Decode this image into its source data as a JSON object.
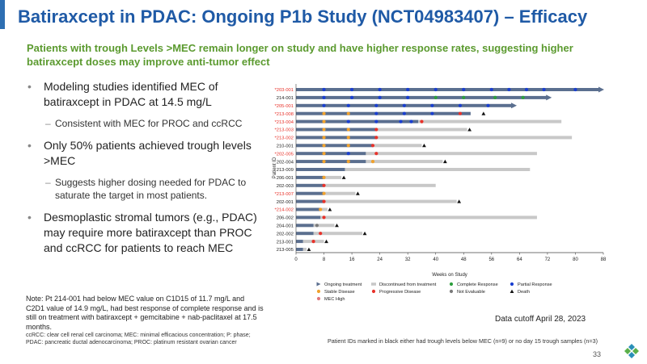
{
  "title": "Batiraxcept in PDAC: Ongoing P1b Study (NCT04983407) – Efficacy",
  "subtitle": "Patients with trough Levels >MEC remain longer on study and have higher response rates, suggesting higher batiraxcept doses may improve anti-tumor effect",
  "bullets": {
    "b1": "Modeling studies identified MEC of batiraxcept in PDAC at 14.5 mg/L",
    "b1_sub": "Consistent with MEC for PROC and ccRCC",
    "b2": "Only 50% patients achieved trough levels >MEC",
    "b2_sub": "Suggests higher dosing needed for PDAC to saturate the target in most patients.",
    "b3": "Desmoplastic stromal tumors (e.g., PDAC) may require more batiraxcept than PROC and ccRCC for patients to reach MEC"
  },
  "note": "Note: Pt 214-001 had below MEC value on C1D15 of 11.7 mg/L and C2D1 value of 14.9 mg/L, had best response of complete response and is still on treatment with batiraxcept + gemcitabine + nab-paclitaxel at 17.5 months.",
  "abbreviations": "ccRCC: clear cell renal cell carcinoma; MEC: minimal efficacious concentration; P: phase; PDAC: pancreatic ductal adenocarcinoma; PROC: platinum resistant ovarian cancer",
  "data_cutoff": "Data cutoff April 28, 2023",
  "footnote": "Patient IDs marked in black either had trough levels below MEC (n=9) or no day 15 trough samples (n=3)",
  "page_number": "33",
  "colors": {
    "title": "#1f5aa6",
    "subtitle": "#5b9a2f",
    "red_id": "#e8322a",
    "ongoing": "#5b6f8f",
    "discontinued": "#c8c8c8",
    "complete": "#2e9e3e",
    "partial": "#1a3fd0",
    "stable": "#f0a22e",
    "progressive": "#e8322a",
    "not_evaluable": "#7a7a7a",
    "death": "#111111",
    "mec_high": "#e0787d"
  },
  "chart_data": {
    "type": "swimmer",
    "xlabel": "Weeks on Study",
    "ylabel": "Patient ID",
    "xlim": [
      0,
      88
    ],
    "xticks": [
      0,
      8,
      16,
      24,
      32,
      40,
      48,
      56,
      64,
      72,
      80,
      88
    ],
    "legend": [
      "Ongoing treatment",
      "Discontinued from treatment",
      "Complete Response",
      "Partial Response",
      "Stable Disease",
      "Progressive Disease",
      "Not Evaluable",
      "Death",
      "MEC High"
    ],
    "patients": [
      {
        "id": "*203-001",
        "high": true,
        "ongoing": true,
        "dark_end": 88,
        "light_end": 88,
        "events": [
          {
            "t": 8,
            "r": "PR"
          },
          {
            "t": 16,
            "r": "PR"
          },
          {
            "t": 24,
            "r": "PR"
          },
          {
            "t": 32,
            "r": "PR"
          },
          {
            "t": 40,
            "r": "PR"
          },
          {
            "t": 48,
            "r": "PR"
          },
          {
            "t": 56,
            "r": "PR"
          },
          {
            "t": 61,
            "r": "PR"
          },
          {
            "t": 66,
            "r": "PR"
          },
          {
            "t": 71,
            "r": "PR"
          },
          {
            "t": 80,
            "r": "PR"
          }
        ]
      },
      {
        "id": "214-001",
        "high": false,
        "ongoing": true,
        "dark_end": 73,
        "light_end": 73,
        "events": [
          {
            "t": 8,
            "r": "PR"
          },
          {
            "t": 16,
            "r": "PR"
          },
          {
            "t": 24,
            "r": "PR"
          },
          {
            "t": 32,
            "r": "PR"
          },
          {
            "t": 40,
            "r": "CR"
          },
          {
            "t": 48,
            "r": "CR"
          },
          {
            "t": 57,
            "r": "CR"
          },
          {
            "t": 65,
            "r": "CR"
          }
        ]
      },
      {
        "id": "*205-001",
        "high": true,
        "ongoing": true,
        "dark_end": 63,
        "light_end": 63,
        "events": [
          {
            "t": 8,
            "r": "PR"
          },
          {
            "t": 15,
            "r": "PR"
          },
          {
            "t": 23,
            "r": "PR"
          },
          {
            "t": 31,
            "r": "PR"
          },
          {
            "t": 39,
            "r": "PR"
          },
          {
            "t": 47,
            "r": "PR"
          },
          {
            "t": 55,
            "r": "PR"
          }
        ]
      },
      {
        "id": "*213-008",
        "high": true,
        "ongoing": false,
        "dark_end": 50,
        "light_end": 50,
        "events": [
          {
            "t": 8,
            "r": "SD"
          },
          {
            "t": 15,
            "r": "SD"
          },
          {
            "t": 23,
            "r": "PR"
          },
          {
            "t": 31,
            "r": "PR"
          },
          {
            "t": 39,
            "r": "PR"
          },
          {
            "t": 47,
            "r": "PD"
          }
        ],
        "death": 53
      },
      {
        "id": "*213-004",
        "high": true,
        "ongoing": false,
        "dark_end": 35,
        "light_end": 76,
        "events": [
          {
            "t": 8,
            "r": "SD"
          },
          {
            "t": 15,
            "r": "PR"
          },
          {
            "t": 23,
            "r": "PR"
          },
          {
            "t": 30,
            "r": "PR"
          },
          {
            "t": 33,
            "r": "PR"
          },
          {
            "t": 36,
            "r": "PD"
          }
        ]
      },
      {
        "id": "*213-003",
        "high": true,
        "ongoing": false,
        "dark_end": 23,
        "light_end": 49,
        "events": [
          {
            "t": 8,
            "r": "SD"
          },
          {
            "t": 15,
            "r": "SD"
          },
          {
            "t": 23,
            "r": "PD"
          }
        ],
        "death": 49
      },
      {
        "id": "*213-002",
        "high": true,
        "ongoing": false,
        "dark_end": 23,
        "light_end": 79,
        "events": [
          {
            "t": 8,
            "r": "SD"
          },
          {
            "t": 15,
            "r": "SD"
          },
          {
            "t": 23,
            "r": "PD"
          }
        ]
      },
      {
        "id": "210-001",
        "high": false,
        "ongoing": false,
        "dark_end": 22,
        "light_end": 36,
        "events": [
          {
            "t": 8,
            "r": "SD"
          },
          {
            "t": 15,
            "r": "SD"
          },
          {
            "t": 22,
            "r": "PD"
          }
        ],
        "death": 36
      },
      {
        "id": "*202-005",
        "high": true,
        "ongoing": false,
        "dark_end": 20,
        "light_end": 69,
        "events": [
          {
            "t": 8,
            "r": "SD"
          },
          {
            "t": 15,
            "r": "PR"
          },
          {
            "t": 23,
            "r": "PD"
          }
        ]
      },
      {
        "id": "202-004",
        "high": false,
        "ongoing": false,
        "dark_end": 20,
        "light_end": 42,
        "events": [
          {
            "t": 8,
            "r": "SD"
          },
          {
            "t": 15,
            "r": "SD"
          },
          {
            "t": 22,
            "r": "SD"
          }
        ],
        "death": 42
      },
      {
        "id": "213-009",
        "high": false,
        "ongoing": false,
        "dark_end": 14,
        "light_end": 67,
        "events": []
      },
      {
        "id": "206-001",
        "high": false,
        "ongoing": false,
        "dark_end": 8,
        "light_end": 13,
        "events": [
          {
            "t": 8,
            "r": "SD"
          }
        ],
        "death": 13
      },
      {
        "id": "202-003",
        "high": false,
        "ongoing": false,
        "dark_end": 8,
        "light_end": 40,
        "events": [
          {
            "t": 8,
            "r": "PD"
          }
        ]
      },
      {
        "id": "*213-007",
        "high": true,
        "ongoing": false,
        "dark_end": 8,
        "light_end": 17,
        "events": [
          {
            "t": 8,
            "r": "SD"
          }
        ],
        "death": 17
      },
      {
        "id": "202-001",
        "high": false,
        "ongoing": false,
        "dark_end": 8,
        "light_end": 46,
        "events": [
          {
            "t": 8,
            "r": "PD"
          }
        ],
        "death": 46
      },
      {
        "id": "*214-002",
        "high": true,
        "ongoing": false,
        "dark_end": 7,
        "light_end": 9,
        "events": [
          {
            "t": 7,
            "r": "SD"
          }
        ],
        "death": 9
      },
      {
        "id": "206-002",
        "high": false,
        "ongoing": false,
        "dark_end": 7,
        "light_end": 69,
        "events": [
          {
            "t": 8,
            "r": "PD"
          }
        ]
      },
      {
        "id": "204-001",
        "high": false,
        "ongoing": false,
        "dark_end": 5,
        "light_end": 11,
        "events": [
          {
            "t": 6,
            "r": "NE"
          }
        ],
        "death": 11
      },
      {
        "id": "202-002",
        "high": false,
        "ongoing": false,
        "dark_end": 5,
        "light_end": 19,
        "events": [
          {
            "t": 7,
            "r": "PD"
          }
        ],
        "death": 19
      },
      {
        "id": "213-001",
        "high": false,
        "ongoing": false,
        "dark_end": 2,
        "light_end": 8,
        "events": [
          {
            "t": 5,
            "r": "PD"
          }
        ],
        "death": 8
      },
      {
        "id": "213-005",
        "high": false,
        "ongoing": false,
        "dark_end": 2,
        "light_end": 3,
        "events": [],
        "death": 3
      }
    ]
  }
}
